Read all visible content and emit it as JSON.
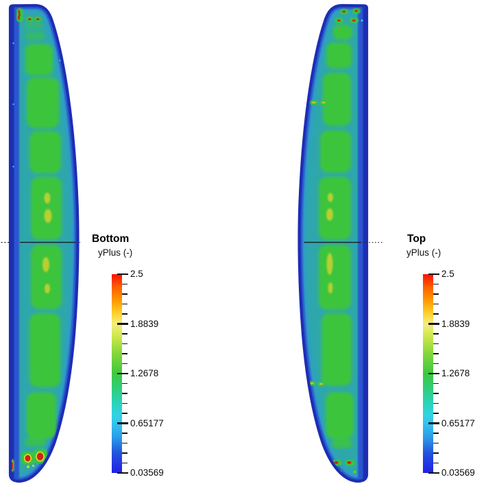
{
  "background_color": "#ffffff",
  "panels": [
    {
      "label": "Bottom",
      "legend_title": "yPlus (-)",
      "tick_labels": [
        "2.5",
        "1.8839",
        "1.2678",
        "0.65177",
        "0.03569"
      ]
    },
    {
      "label": "Top",
      "legend_title": "yPlus (-)",
      "tick_labels": [
        "2.5",
        "1.8839",
        "1.2678",
        "0.65177",
        "0.03569"
      ]
    }
  ],
  "colorbar": {
    "orientation": "vertical",
    "max": 2.5,
    "min": 0.03569,
    "minor_ticks_per_interval": 4,
    "colormap_stops": [
      "#fa1200",
      "#ff9800",
      "#f4ee7e",
      "#3dc83e",
      "#33c4ee",
      "#2020e6"
    ]
  },
  "colors": {
    "surface_base_teal": "#2EA7AC",
    "surface_border_navy": "#1D2EB3",
    "surface_border_blue": "#2B55CF",
    "surface_transition_cyan": "#2E9EC6",
    "contour_green": "#3CC43D",
    "hotspot_yellow": "#B8CF33",
    "peak_red": "#CE2318",
    "section_line": "#1b1b22"
  },
  "chart_data": {
    "type": "heatmap",
    "title": "",
    "field_name": "yPlus (-)",
    "colormap": "rainbow blue-to-red",
    "value_range": [
      0.03569,
      2.5
    ],
    "colorbar_ticks": [
      2.5,
      1.8839,
      1.2678,
      0.65177,
      0.03569
    ],
    "legend_position": "right of each surface",
    "grid": false,
    "notes": "Two slender wing planform surfaces shown side by side; dashed horizontal line marks the mid-span section at image mid-height.",
    "views": [
      {
        "name": "Bottom",
        "typical_values": {
          "edges_and_border": "0.05-0.4 (dark blue band around perimeter)",
          "near_edge_band": "0.6-0.9 (teal/cyan base)",
          "interior_panels": "1.2-1.4 (green rounded patches stacked spanwise)",
          "mid_span_hotspots": "1.7-2.0 (yellow ovals near mid-span)",
          "root_tip_peaks": "2.4-2.5 (small red spots at top tip and bottom root corner)"
        }
      },
      {
        "name": "Top",
        "typical_values": {
          "edges_and_border": "0.05-0.4 (dark blue band around perimeter)",
          "near_edge_band": "0.6-0.9 (teal/cyan base)",
          "interior_panels": "1.2-1.4 (green rounded patches stacked spanwise)",
          "mid_span_hotspots": "1.7-2.0 (elongated yellow streaks near mid-span)",
          "root_tip_peaks": "2.4-2.5 (small red-centered ovals at tip and root)"
        }
      }
    ]
  }
}
